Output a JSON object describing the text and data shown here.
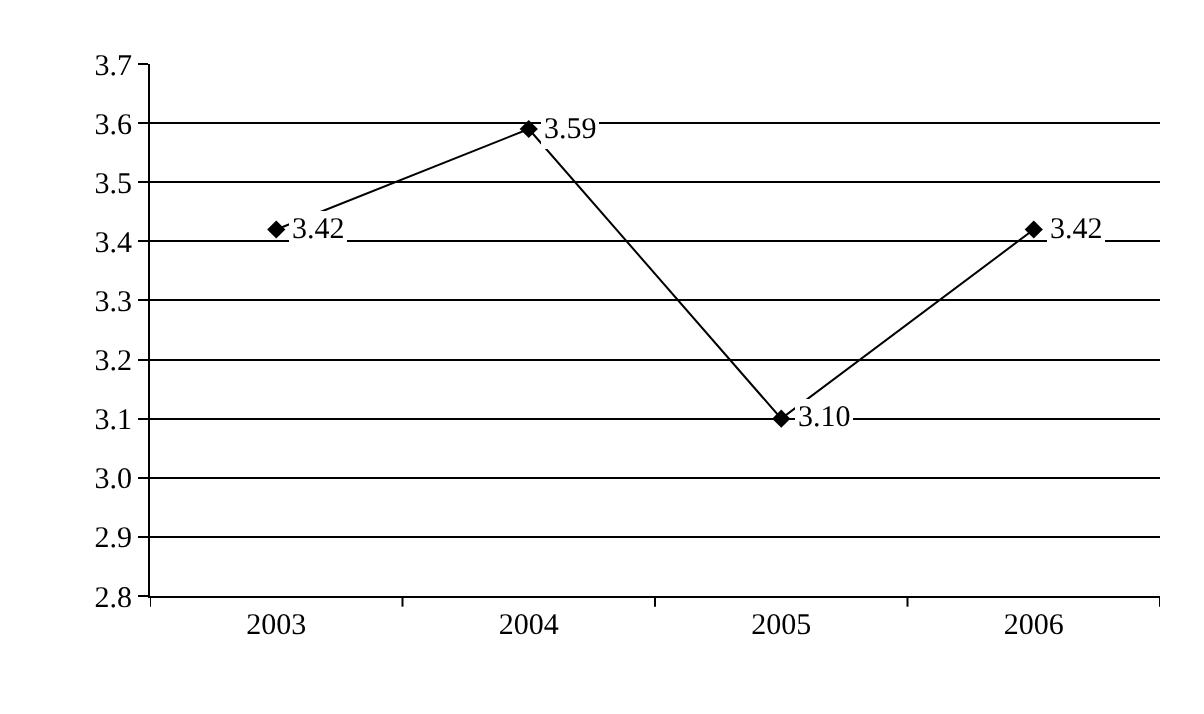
{
  "chart_data": {
    "type": "line",
    "categories": [
      "2003",
      "2004",
      "2005",
      "2006"
    ],
    "series": [
      {
        "color": "#000000",
        "values": [
          3.42,
          3.59,
          3.1,
          3.42
        ],
        "value_labels": [
          "3.42",
          "3.59",
          "3.10",
          "3.42"
        ]
      }
    ],
    "ylim": [
      2.8,
      3.7
    ],
    "yticks": [
      2.8,
      2.9,
      {
        "value": 3.0,
        "label": "3.0"
      },
      3.1,
      3.2,
      3.3,
      3.4,
      3.5,
      3.6,
      3.7
    ],
    "grid": "y",
    "marker": "diamond",
    "line_style": "solid"
  }
}
